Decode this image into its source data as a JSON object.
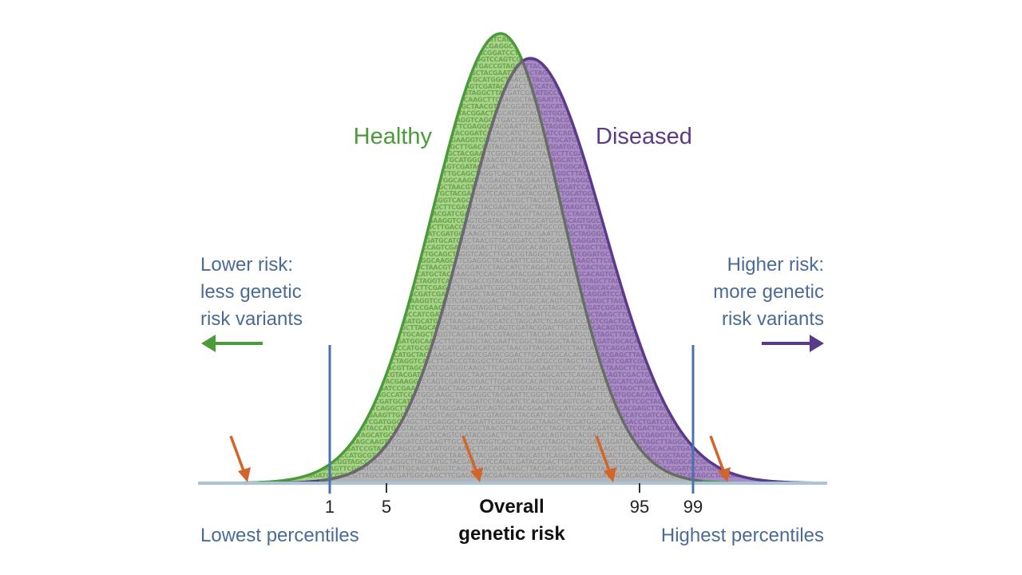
{
  "labels": {
    "healthy": "Healthy",
    "diseased": "Diseased",
    "lower_risk": [
      "Lower risk:",
      "less genetic",
      "risk variants"
    ],
    "higher_risk": [
      "Higher risk:",
      "more genetic",
      "risk variants"
    ],
    "axis_title": [
      "Overall",
      "genetic risk"
    ],
    "lowest_percentiles": "Lowest percentiles",
    "highest_percentiles": "Highest percentiles"
  },
  "percentile_ticks": [
    "1",
    "5",
    "95",
    "99"
  ],
  "dna_rows": [
    "ATGCCGTAGCTTAGGCATCGATCGGATCCATGGCTAGCAAGTTCGGATCCGAAGTTGCAGCTAGGTCAGCTTGACCGTAGGCTTACGATCGG",
    "GGCTAAGCTTCGATGGCACAGTGACCTGATCGTAGCCTAGGATCCGTACGTTAGCCATCGATGGCAAGCTTCGAGGCTACGAATTCGGCTAG",
    "TCAGGATCCAGTCGACTGCAGAATTCGCTAGCGGCCGCTTAAGGTACCATGCGTACGATCGATGCATGGCTAACGTTACGGATCCTAGCATC",
    "CAGTGGCACGAGCTTAGGCATCGAGGTTCAACCGGTAGCCAAGTCAGGCTTAGCATGCTACGAAGGTCCAGTCGATACGGACTTGCATGGCA"
  ],
  "colors": {
    "healthy": "#4b9b3a",
    "healthy_fill": "#a8d48a",
    "diseased": "#5a3a8a",
    "diseased_fill": "#a98cc4",
    "overlap_fill": "#b4b4b4",
    "overlap_stroke": "#6a6a6a",
    "annotation": "#4a6a9a",
    "marker_line": "#4a70b0",
    "arrow": "#d4652a",
    "baseline": "#a8c4d8"
  },
  "icons": {
    "left_arrow": "arrow-left-icon",
    "right_arrow": "arrow-right-icon",
    "variant_marker": "arrow-down-icon"
  }
}
